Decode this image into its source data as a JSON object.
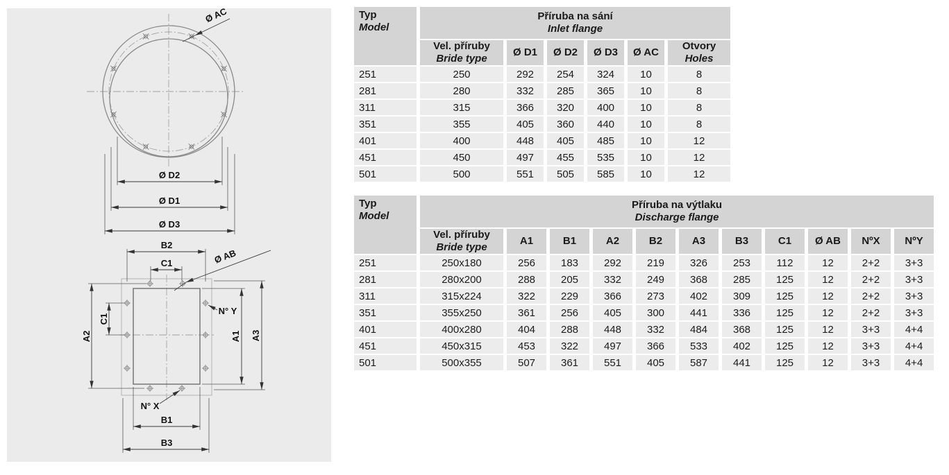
{
  "colors": {
    "page_bg": "#ffffff",
    "panel_bg": "#ebebeb",
    "header_cell": "#d4d4d4",
    "data_cell": "#ececec",
    "text": "#1a1a1a"
  },
  "diagram": {
    "inlet": {
      "labels": {
        "ac": "Ø AC",
        "d2": "Ø D2",
        "d1": "Ø D1",
        "d3": "Ø D3"
      }
    },
    "discharge": {
      "labels": {
        "b2": "B2",
        "c1": "C1",
        "ab": "Ø AB",
        "ny": "N° Y",
        "nx": "N° X",
        "a1": "A1",
        "a2": "A2",
        "a3": "A3",
        "b1": "B1",
        "b3": "B3"
      }
    }
  },
  "tables": {
    "inlet": {
      "typ1": "Typ",
      "typ2": "Model",
      "title1": "Příruba na sání",
      "title2": "Inlet flange",
      "sub": {
        "vel1": "Vel. příruby",
        "vel2": "Bride type",
        "d1": "Ø D1",
        "d2": "Ø D2",
        "d3": "Ø D3",
        "ac": "Ø AC",
        "otv1": "Otvory",
        "otv2": "Holes"
      },
      "rows": [
        [
          "251",
          "250",
          "292",
          "254",
          "324",
          "10",
          "8"
        ],
        [
          "281",
          "280",
          "332",
          "285",
          "365",
          "10",
          "8"
        ],
        [
          "311",
          "315",
          "366",
          "320",
          "400",
          "10",
          "8"
        ],
        [
          "351",
          "355",
          "405",
          "360",
          "440",
          "10",
          "8"
        ],
        [
          "401",
          "400",
          "448",
          "405",
          "485",
          "10",
          "12"
        ],
        [
          "451",
          "450",
          "497",
          "455",
          "535",
          "10",
          "12"
        ],
        [
          "501",
          "500",
          "551",
          "505",
          "585",
          "10",
          "12"
        ]
      ]
    },
    "discharge": {
      "typ1": "Typ",
      "typ2": "Model",
      "title1": "Příruba na výtlaku",
      "title2": "Discharge flange",
      "sub": {
        "vel1": "Vel. příruby",
        "vel2": "Bride type",
        "a1": "A1",
        "b1": "B1",
        "a2": "A2",
        "b2": "B2",
        "a3": "A3",
        "b3": "B3",
        "c1": "C1",
        "ab": "Ø AB",
        "nx": "NºX",
        "ny": "NºY"
      },
      "rows": [
        [
          "251",
          "250x180",
          "256",
          "183",
          "292",
          "219",
          "326",
          "253",
          "112",
          "12",
          "2+2",
          "3+3"
        ],
        [
          "281",
          "280x200",
          "288",
          "205",
          "332",
          "249",
          "368",
          "285",
          "125",
          "12",
          "2+2",
          "3+3"
        ],
        [
          "311",
          "315x224",
          "322",
          "229",
          "366",
          "273",
          "402",
          "309",
          "125",
          "12",
          "2+2",
          "3+3"
        ],
        [
          "351",
          "355x250",
          "361",
          "256",
          "405",
          "300",
          "441",
          "336",
          "125",
          "12",
          "2+2",
          "3+3"
        ],
        [
          "401",
          "400x280",
          "404",
          "288",
          "448",
          "332",
          "484",
          "368",
          "125",
          "12",
          "3+3",
          "4+4"
        ],
        [
          "451",
          "450x315",
          "453",
          "322",
          "497",
          "366",
          "533",
          "402",
          "125",
          "12",
          "3+3",
          "4+4"
        ],
        [
          "501",
          "500x355",
          "507",
          "361",
          "551",
          "405",
          "587",
          "441",
          "125",
          "12",
          "3+3",
          "4+4"
        ]
      ]
    }
  }
}
